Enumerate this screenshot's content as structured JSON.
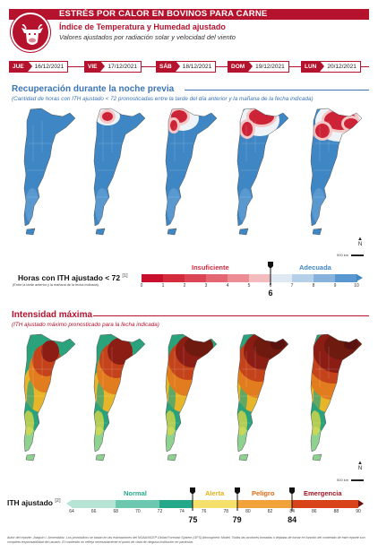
{
  "header": {
    "title": "ESTRÉS POR CALOR EN BOVINOS PARA CARNE",
    "subtitle": "Índice de Temperatura y Humedad ajustado",
    "description": "Valores ajustados por radiación solar y velocidad del viento"
  },
  "dates": [
    {
      "day": "JUE",
      "date": "16/12/2021"
    },
    {
      "day": "VIE",
      "date": "17/12/2021"
    },
    {
      "day": "SÁB",
      "date": "18/12/2021"
    },
    {
      "day": "DOM",
      "date": "19/12/2021"
    },
    {
      "day": "LUN",
      "date": "20/12/2021"
    }
  ],
  "section1": {
    "title": "Recuperación durante la noche previa",
    "subtitle": "(Cantidad de horas con ITH ajustado < 72 pronosticadas entre la tarde del día anterior y la mañana de la fecha indicada)",
    "scale_text": "500 km",
    "legend": {
      "label": "Horas con ITH ajustado < 72",
      "ref": "[1]",
      "note": "(Entre la tarde anterior y la mañana de la fecha indicada)",
      "insufficient_label": "Insuficiente",
      "adequate_label": "Adecuada",
      "ticks": [
        "0",
        "1",
        "2",
        "3",
        "4",
        "5",
        "6",
        "7",
        "8",
        "9",
        "10"
      ],
      "threshold": "6",
      "colors": {
        "insufficient": "#d0283f",
        "adequate": "#3d86c6"
      }
    }
  },
  "section2": {
    "title": "Intensidad máxima",
    "subtitle": "(ITH ajustado máximo pronosticado para la fecha indicada)",
    "scale_text": "500 km",
    "legend": {
      "label": "ITH ajustado",
      "ref": "[2]",
      "categories": {
        "normal": "Normal",
        "alert": "Alerta",
        "danger": "Peligro",
        "emergency": "Emergencia"
      },
      "ticks": [
        "64",
        "66",
        "68",
        "70",
        "72",
        "74",
        "76",
        "78",
        "80",
        "82",
        "84",
        "86",
        "88",
        "90"
      ],
      "thresholds": [
        "75",
        "79",
        "84"
      ],
      "colors": {
        "normal": "#25a88a",
        "alert": "#e3b21c",
        "danger": "#e06a10",
        "emergency": "#a3121f"
      }
    }
  },
  "footer": "Autor del reporte: Joaquín I. Armendáriz. Los pronósticos se basan en las estimaciones del NOAA/NCEP Global Forecast System (GFS) Atmospheric Model. Todas las acciones tomadas o dejadas de tomar en función del contenido de este reporte son completa responsabilidad del usuario. El contenido no refleja necesariamente el punto de vista de ninguna institución en particular."
}
